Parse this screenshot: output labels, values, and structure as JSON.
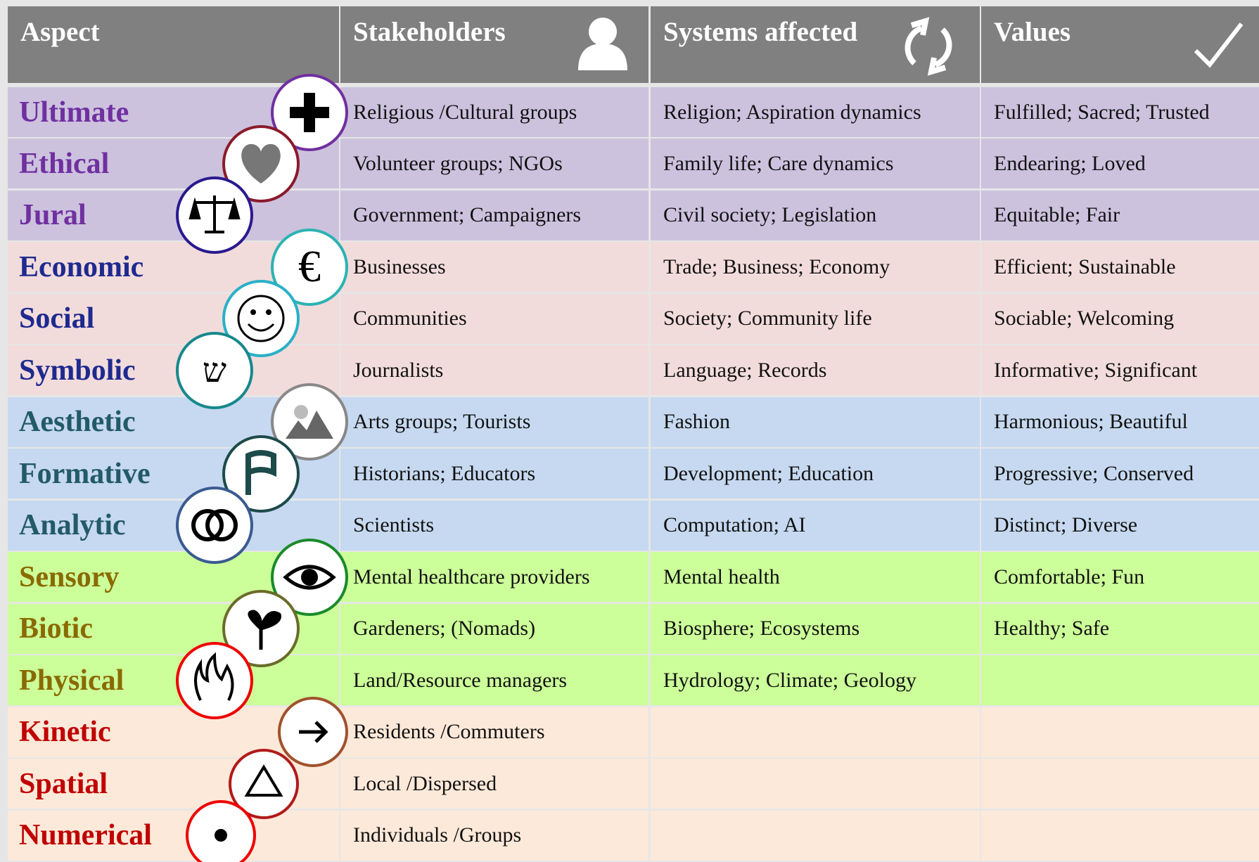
{
  "header": {
    "columns": [
      "Aspect",
      "Stakeholders",
      "Systems affected",
      "Values"
    ]
  },
  "table": {
    "rows": [
      [
        "Ultimate",
        "Religious /Cultural groups",
        "Religion; Aspiration dynamics",
        "Fulfilled; Sacred; Trusted"
      ],
      [
        "Ethical",
        "Volunteer groups;  NGOs",
        "Family life; Care dynamics",
        "Endearing; Loved"
      ],
      [
        "Jural",
        "Government;  Campaigners",
        "Civil society; Legislation",
        "Equitable; Fair"
      ],
      [
        "Economic",
        "Businesses",
        "Trade; Business; Economy",
        "Efficient; Sustainable"
      ],
      [
        "Social",
        "Communities",
        "Society; Community life",
        "Sociable; Welcoming"
      ],
      [
        "Symbolic",
        "Journalists",
        "Language; Records",
        "Informative; Significant"
      ],
      [
        "Aesthetic",
        "Arts groups;  Tourists",
        "Fashion",
        "Harmonious; Beautiful"
      ],
      [
        "Formative",
        "Historians; Educators",
        "Development; Education",
        "Progressive; Conserved"
      ],
      [
        "Analytic",
        "Scientists",
        "Computation; AI",
        "Distinct; Diverse"
      ],
      [
        "Sensory",
        "Mental healthcare providers",
        "Mental health",
        "Comfortable; Fun"
      ],
      [
        "Biotic",
        "Gardeners;  (Nomads)",
        "Biosphere; Ecosystems",
        "Healthy; Safe"
      ],
      [
        "Physical",
        "Land/Resource managers",
        "Hydrology; Climate; Geology"
      ],
      [
        "Kinetic",
        "Residents /Commuters"
      ],
      [
        "Spatial",
        "Local /Dispersed"
      ],
      [
        "Numerical",
        "Individuals /Groups"
      ]
    ]
  }
}
